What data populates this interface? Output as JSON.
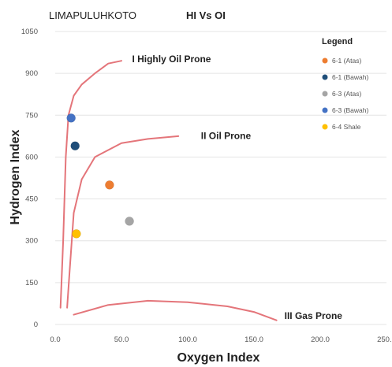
{
  "chart_data": {
    "type": "scatter",
    "title": "HI Vs OI",
    "location": "LIMAPULUHKOTO",
    "xlabel": "Oxygen Index",
    "ylabel": "Hydrogen Index",
    "xlim": [
      0,
      250
    ],
    "ylim": [
      0,
      1050
    ],
    "xticks": [
      "0.0",
      "50.0",
      "100.0",
      "150.0",
      "200.0",
      "250.0"
    ],
    "yticks": [
      "0",
      "150",
      "300",
      "450",
      "600",
      "750",
      "900",
      "1050"
    ],
    "grid": true,
    "legend": {
      "title": "Legend",
      "position": "right"
    },
    "series": [
      {
        "name": "6-1 (Atas)",
        "color": "#ed7d31",
        "points": [
          [
            41,
            500
          ]
        ]
      },
      {
        "name": "6-1 (Bawah)",
        "color": "#1f4e79",
        "points": [
          [
            15,
            640
          ]
        ]
      },
      {
        "name": "6-3 (Atas)",
        "color": "#a5a5a5",
        "points": [
          [
            56,
            370
          ]
        ]
      },
      {
        "name": "6-3 (Bawah)",
        "color": "#4472c4",
        "points": [
          [
            12,
            740
          ]
        ]
      },
      {
        "name": "6-4 Shale",
        "color": "#ffc000",
        "points": [
          [
            16,
            325
          ]
        ]
      }
    ],
    "regions": [
      {
        "label": "I Highly Oil Prone",
        "label_at": [
          58,
          940
        ],
        "curve": [
          [
            4,
            60
          ],
          [
            6,
            300
          ],
          [
            8,
            600
          ],
          [
            10,
            750
          ],
          [
            14,
            820
          ],
          [
            20,
            860
          ],
          [
            30,
            900
          ],
          [
            40,
            935
          ],
          [
            50,
            945
          ]
        ]
      },
      {
        "label": "II Oil Prone",
        "label_at": [
          110,
          665
        ],
        "curve": [
          [
            9,
            60
          ],
          [
            11,
            200
          ],
          [
            14,
            400
          ],
          [
            20,
            520
          ],
          [
            30,
            600
          ],
          [
            50,
            650
          ],
          [
            70,
            665
          ],
          [
            93,
            675
          ]
        ]
      },
      {
        "label": "III Gas Prone",
        "label_at": [
          173,
          20
        ],
        "curve": [
          [
            14,
            35
          ],
          [
            40,
            70
          ],
          [
            70,
            85
          ],
          [
            100,
            80
          ],
          [
            130,
            65
          ],
          [
            150,
            45
          ],
          [
            167,
            15
          ]
        ]
      }
    ]
  }
}
